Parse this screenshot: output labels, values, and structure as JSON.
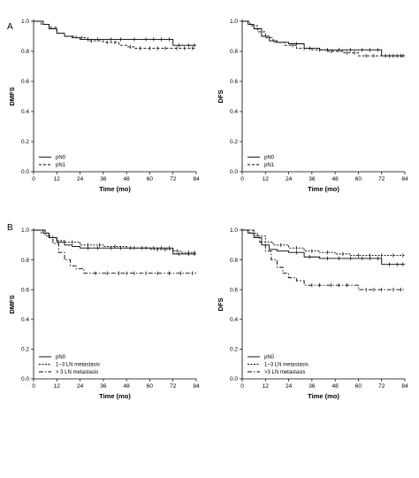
{
  "figure": {
    "panel_labels": [
      "A",
      "B"
    ]
  },
  "styles": {
    "line_color": "#000000",
    "background": "#ffffff"
  },
  "chart_data": [
    {
      "type": "line",
      "panel": "A",
      "xlabel": "Time (mo)",
      "ylabel": "DMFS",
      "xlim": [
        0,
        84
      ],
      "ylim": [
        0,
        1.0
      ],
      "xticks": [
        0,
        12,
        24,
        36,
        48,
        60,
        72,
        84
      ],
      "yticks": [
        "0.0",
        "0.2",
        "0.4",
        "0.6",
        "0.8",
        "1.0"
      ],
      "grid": false,
      "legend_position": "bottom-left",
      "series": [
        {
          "name": "pN0",
          "style": "solid",
          "x": [
            0,
            5,
            8,
            12,
            16,
            20,
            24,
            36,
            48,
            71,
            72,
            84
          ],
          "y": [
            1.0,
            0.98,
            0.95,
            0.92,
            0.9,
            0.89,
            0.88,
            0.88,
            0.88,
            0.88,
            0.84,
            0.84
          ],
          "censor_x": [
            28,
            33,
            40,
            45,
            52,
            58,
            62,
            66,
            70,
            75,
            80,
            83
          ]
        },
        {
          "name": "pN1",
          "style": "dashed",
          "x": [
            0,
            4,
            8,
            12,
            16,
            22,
            28,
            36,
            44,
            48,
            52,
            84
          ],
          "y": [
            1.0,
            0.98,
            0.96,
            0.92,
            0.9,
            0.89,
            0.87,
            0.86,
            0.84,
            0.83,
            0.82,
            0.82
          ],
          "censor_x": [
            25,
            30,
            38,
            42,
            50,
            55,
            60,
            64,
            68,
            74,
            78,
            82
          ]
        }
      ]
    },
    {
      "type": "line",
      "panel": "A",
      "xlabel": "Time (mo)",
      "ylabel": "DFS",
      "xlim": [
        0,
        84
      ],
      "ylim": [
        0,
        1.0
      ],
      "xticks": [
        0,
        12,
        24,
        36,
        48,
        60,
        72,
        84
      ],
      "yticks": [
        "0.0",
        "0.2",
        "0.4",
        "0.6",
        "0.8",
        "1.0"
      ],
      "grid": false,
      "legend_position": "bottom-left",
      "series": [
        {
          "name": "pN0",
          "style": "solid",
          "x": [
            0,
            3,
            6,
            10,
            14,
            18,
            24,
            32,
            40,
            71,
            72,
            84
          ],
          "y": [
            1.0,
            0.98,
            0.95,
            0.9,
            0.87,
            0.86,
            0.85,
            0.82,
            0.81,
            0.81,
            0.77,
            0.77
          ],
          "censor_x": [
            28,
            35,
            44,
            50,
            56,
            62,
            66,
            70,
            76,
            80,
            83
          ]
        },
        {
          "name": "pN1",
          "style": "dashed",
          "x": [
            0,
            4,
            8,
            12,
            16,
            22,
            28,
            36,
            44,
            52,
            60,
            84
          ],
          "y": [
            1.0,
            0.97,
            0.93,
            0.89,
            0.86,
            0.84,
            0.82,
            0.81,
            0.8,
            0.79,
            0.77,
            0.77
          ],
          "censor_x": [
            26,
            32,
            40,
            46,
            54,
            58,
            64,
            68,
            74,
            78,
            82
          ]
        }
      ]
    },
    {
      "type": "line",
      "panel": "B",
      "xlabel": "Time (mo)",
      "ylabel": "DMFS",
      "xlim": [
        0,
        84
      ],
      "ylim": [
        0,
        1.0
      ],
      "xticks": [
        0,
        12,
        24,
        36,
        48,
        60,
        72,
        84
      ],
      "yticks": [
        "0.0",
        "0.2",
        "0.4",
        "0.6",
        "0.8",
        "1.0"
      ],
      "grid": false,
      "legend_position": "bottom-left",
      "series": [
        {
          "name": "pN0",
          "style": "solid",
          "x": [
            0,
            5,
            8,
            12,
            16,
            20,
            24,
            36,
            48,
            71,
            72,
            84
          ],
          "y": [
            1.0,
            0.98,
            0.95,
            0.92,
            0.9,
            0.89,
            0.88,
            0.88,
            0.88,
            0.88,
            0.84,
            0.84
          ],
          "censor_x": [
            28,
            33,
            40,
            45,
            52,
            58,
            62,
            66,
            70,
            75,
            80,
            83
          ]
        },
        {
          "name": "1~3 LN metastasis",
          "style": "dotted",
          "x": [
            0,
            4,
            8,
            12,
            16,
            24,
            36,
            48,
            60,
            72,
            76,
            84
          ],
          "y": [
            1.0,
            0.98,
            0.95,
            0.93,
            0.92,
            0.9,
            0.89,
            0.88,
            0.87,
            0.86,
            0.85,
            0.85
          ],
          "censor_x": [
            20,
            28,
            34,
            42,
            50,
            56,
            64,
            68,
            74,
            80,
            83
          ]
        },
        {
          "name": "> 3 LN metastasis",
          "style": "dashdot",
          "x": [
            0,
            6,
            10,
            13,
            16,
            19,
            22,
            26,
            84
          ],
          "y": [
            1.0,
            0.96,
            0.91,
            0.85,
            0.8,
            0.76,
            0.74,
            0.71,
            0.71
          ],
          "censor_x": [
            32,
            38,
            44,
            48,
            52,
            58,
            64,
            70,
            76,
            82
          ]
        }
      ]
    },
    {
      "type": "line",
      "panel": "B",
      "xlabel": "Time (mo)",
      "ylabel": "DFS",
      "xlim": [
        0,
        84
      ],
      "ylim": [
        0,
        1.0
      ],
      "xticks": [
        0,
        12,
        24,
        36,
        48,
        60,
        72,
        84
      ],
      "yticks": [
        "0.0",
        "0.2",
        "0.4",
        "0.6",
        "0.8",
        "1.0"
      ],
      "grid": false,
      "legend_position": "bottom-left",
      "series": [
        {
          "name": "pN0",
          "style": "solid",
          "x": [
            0,
            3,
            6,
            10,
            14,
            18,
            24,
            32,
            40,
            71,
            72,
            84
          ],
          "y": [
            1.0,
            0.98,
            0.95,
            0.9,
            0.87,
            0.86,
            0.85,
            0.82,
            0.81,
            0.81,
            0.77,
            0.77
          ],
          "censor_x": [
            28,
            35,
            44,
            50,
            56,
            62,
            66,
            70,
            76,
            80,
            83
          ]
        },
        {
          "name": "1~3 LN metastasis",
          "style": "dotted",
          "x": [
            0,
            4,
            8,
            12,
            16,
            24,
            32,
            40,
            48,
            56,
            84
          ],
          "y": [
            1.0,
            0.98,
            0.96,
            0.92,
            0.9,
            0.88,
            0.86,
            0.85,
            0.84,
            0.83,
            0.83
          ],
          "censor_x": [
            20,
            28,
            36,
            44,
            52,
            60,
            66,
            72,
            78,
            83
          ]
        },
        {
          "name": ">3 LN metastasis",
          "style": "dashdot",
          "x": [
            0,
            6,
            9,
            12,
            15,
            18,
            21,
            24,
            28,
            32,
            58,
            60,
            84
          ],
          "y": [
            1.0,
            0.96,
            0.92,
            0.86,
            0.8,
            0.75,
            0.71,
            0.68,
            0.66,
            0.63,
            0.63,
            0.6,
            0.6
          ],
          "censor_x": [
            36,
            40,
            46,
            50,
            54,
            64,
            68,
            72,
            78,
            82
          ]
        }
      ]
    }
  ]
}
